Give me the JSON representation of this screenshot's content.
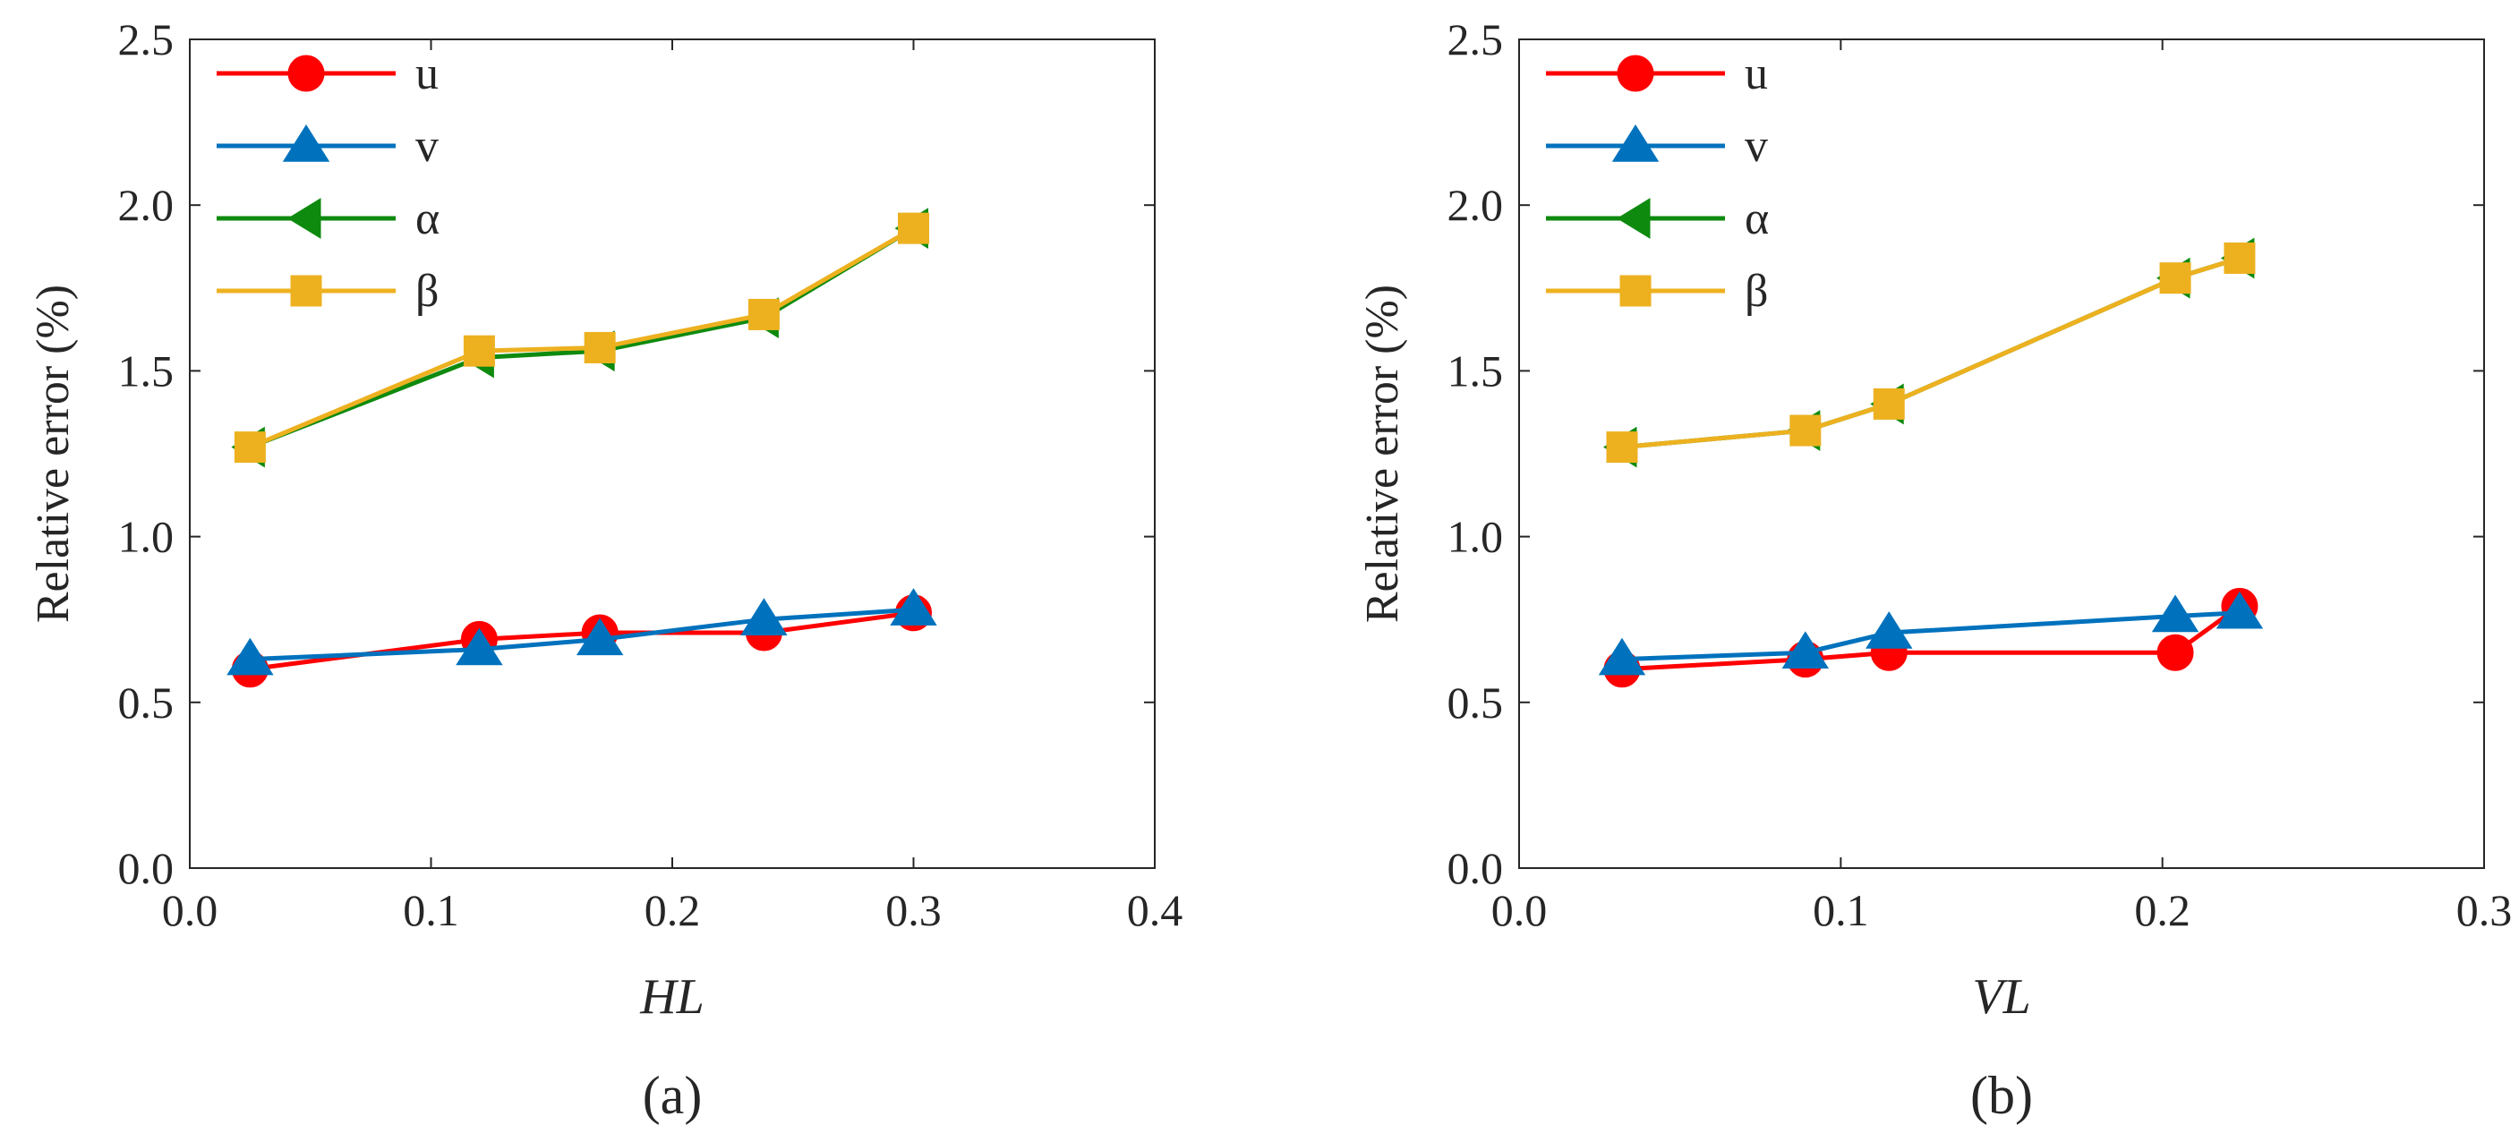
{
  "series_style": [
    {
      "key": "u",
      "color": "#FF0000",
      "marker": "circle"
    },
    {
      "key": "v",
      "color": "#0072BD",
      "marker": "triangle-up"
    },
    {
      "key": "alpha",
      "color": "#0E8A0E",
      "marker": "triangle-left"
    },
    {
      "key": "beta",
      "color": "#EDB120",
      "marker": "square"
    }
  ],
  "chart_data": [
    {
      "type": "line",
      "panel_label": "(a)",
      "xlabel": "HL",
      "ylabel": "Relative error (%)",
      "xlim": [
        0,
        0.4
      ],
      "ylim": [
        0,
        2.5
      ],
      "xticks": [
        0,
        0.1,
        0.2,
        0.3,
        0.4
      ],
      "xtick_labels": [
        "0.0",
        "0.1",
        "0.2",
        "0.3",
        "0.4"
      ],
      "yticks": [
        0,
        0.5,
        1.0,
        1.5,
        2.0,
        2.5
      ],
      "ytick_labels": [
        "0.0",
        "0.5",
        "1.0",
        "1.5",
        "2.0",
        "2.5"
      ],
      "legend": [
        "u",
        "v",
        "α",
        "β"
      ],
      "legend_position": "top-left",
      "x": [
        0.025,
        0.12,
        0.17,
        0.238,
        0.3
      ],
      "series": [
        {
          "name": "u",
          "values": [
            0.6,
            0.69,
            0.71,
            0.71,
            0.77
          ]
        },
        {
          "name": "v",
          "values": [
            0.63,
            0.66,
            0.69,
            0.75,
            0.78
          ]
        },
        {
          "name": "α",
          "values": [
            1.27,
            1.54,
            1.56,
            1.66,
            1.93
          ]
        },
        {
          "name": "β",
          "values": [
            1.27,
            1.56,
            1.57,
            1.67,
            1.93
          ]
        }
      ]
    },
    {
      "type": "line",
      "panel_label": "(b)",
      "xlabel": "VL",
      "ylabel": "Relative error (%)",
      "xlim": [
        0,
        0.3
      ],
      "ylim": [
        0,
        2.5
      ],
      "xticks": [
        0,
        0.1,
        0.2,
        0.3
      ],
      "xtick_labels": [
        "0.0",
        "0.1",
        "0.2",
        "0.3"
      ],
      "yticks": [
        0,
        0.5,
        1.0,
        1.5,
        2.0,
        2.5
      ],
      "ytick_labels": [
        "0.0",
        "0.5",
        "1.0",
        "1.5",
        "2.0",
        "2.5"
      ],
      "legend": [
        "u",
        "v",
        "α",
        "β"
      ],
      "legend_position": "top-left",
      "x": [
        0.032,
        0.089,
        0.115,
        0.204,
        0.224
      ],
      "series": [
        {
          "name": "u",
          "values": [
            0.6,
            0.63,
            0.65,
            0.65,
            0.79
          ]
        },
        {
          "name": "v",
          "values": [
            0.63,
            0.65,
            0.71,
            0.76,
            0.77
          ]
        },
        {
          "name": "α",
          "values": [
            1.27,
            1.32,
            1.4,
            1.78,
            1.84
          ]
        },
        {
          "name": "β",
          "values": [
            1.27,
            1.32,
            1.4,
            1.78,
            1.84
          ]
        }
      ]
    }
  ]
}
